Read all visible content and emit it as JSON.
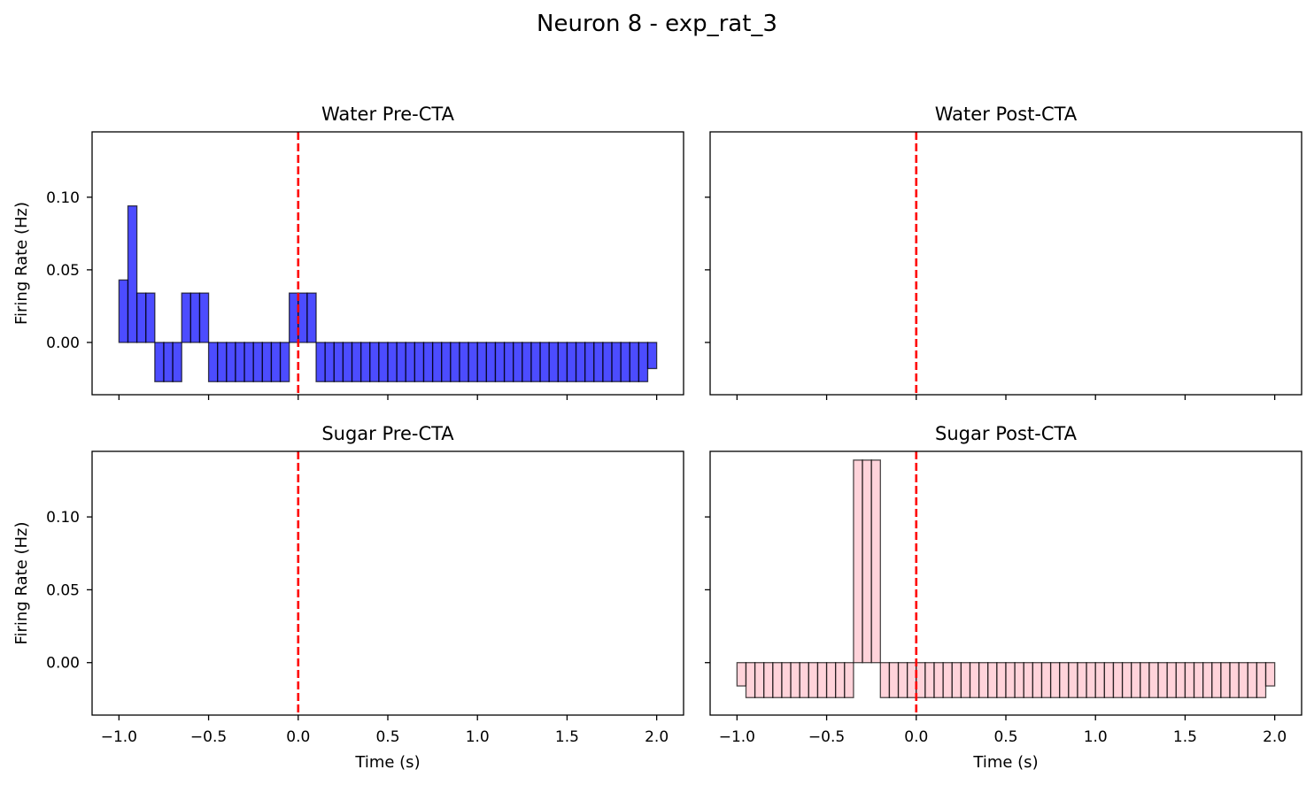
{
  "figure": {
    "title": "Neuron 8 - exp_rat_3"
  },
  "colors": {
    "water": "#0000ff",
    "sugar": "#ffc0cb",
    "edge": "#000000",
    "stimulus_line": "#ff0000"
  },
  "chart_data": [
    {
      "type": "bar",
      "title": "Water Pre-CTA",
      "xlabel": "",
      "ylabel": "Firing Rate (Hz)",
      "xlim": [
        -1.15,
        2.15
      ],
      "ylim": [
        -0.036,
        0.145
      ],
      "xticks": [
        -1.0,
        -0.5,
        0.0,
        0.5,
        1.0,
        1.5,
        2.0
      ],
      "xtick_labels": [],
      "yticks": [
        0.0,
        0.05,
        0.1
      ],
      "ytick_labels": [
        "0.00",
        "0.05",
        "0.10"
      ],
      "bin_start": -1.0,
      "bin_width": 0.05,
      "values": [
        0.043,
        0.094,
        0.034,
        0.034,
        -0.027,
        -0.027,
        -0.027,
        0.034,
        0.034,
        0.034,
        -0.027,
        -0.027,
        -0.027,
        -0.027,
        -0.027,
        -0.027,
        -0.027,
        -0.027,
        -0.027,
        0.034,
        0.034,
        0.034,
        -0.027,
        -0.027,
        -0.027,
        -0.027,
        -0.027,
        -0.027,
        -0.027,
        -0.027,
        -0.027,
        -0.027,
        -0.027,
        -0.027,
        -0.027,
        -0.027,
        -0.027,
        -0.027,
        -0.027,
        -0.027,
        -0.027,
        -0.027,
        -0.027,
        -0.027,
        -0.027,
        -0.027,
        -0.027,
        -0.027,
        -0.027,
        -0.027,
        -0.027,
        -0.027,
        -0.027,
        -0.027,
        -0.027,
        -0.027,
        -0.027,
        -0.027,
        -0.027,
        -0.018
      ],
      "fill": "water",
      "alpha": 0.7,
      "stimulus_x": 0.0
    },
    {
      "type": "bar",
      "title": "Water Post-CTA",
      "xlabel": "",
      "ylabel": "",
      "xlim": [
        -1.15,
        2.15
      ],
      "ylim": [
        -0.036,
        0.145
      ],
      "xticks": [
        -1.0,
        -0.5,
        0.0,
        0.5,
        1.0,
        1.5,
        2.0
      ],
      "xtick_labels": [],
      "yticks": [
        0.0,
        0.05,
        0.1
      ],
      "ytick_labels": [],
      "bin_start": -1.0,
      "bin_width": 0.05,
      "values": [
        0,
        0,
        0,
        0,
        0,
        0,
        0,
        0,
        0,
        0,
        0,
        0,
        0,
        0,
        0,
        0,
        0,
        0,
        0,
        0,
        0,
        0,
        0,
        0,
        0,
        0,
        0,
        0,
        0,
        0,
        0,
        0,
        0,
        0,
        0,
        0,
        0,
        0,
        0,
        0,
        0,
        0,
        0,
        0,
        0,
        0,
        0,
        0,
        0,
        0,
        0,
        0,
        0,
        0,
        0,
        0,
        0,
        0,
        0,
        0
      ],
      "fill": "water",
      "alpha": 0.7,
      "stimulus_x": 0.0
    },
    {
      "type": "bar",
      "title": "Sugar Pre-CTA",
      "xlabel": "Time (s)",
      "ylabel": "Firing Rate (Hz)",
      "xlim": [
        -1.15,
        2.15
      ],
      "ylim": [
        -0.036,
        0.145
      ],
      "xticks": [
        -1.0,
        -0.5,
        0.0,
        0.5,
        1.0,
        1.5,
        2.0
      ],
      "xtick_labels": [
        "−1.0",
        "−0.5",
        "0.0",
        "0.5",
        "1.0",
        "1.5",
        "2.0"
      ],
      "yticks": [
        0.0,
        0.05,
        0.1
      ],
      "ytick_labels": [
        "0.00",
        "0.05",
        "0.10"
      ],
      "bin_start": -1.0,
      "bin_width": 0.05,
      "values": [
        0,
        0,
        0,
        0,
        0,
        0,
        0,
        0,
        0,
        0,
        0,
        0,
        0,
        0,
        0,
        0,
        0,
        0,
        0,
        0,
        0,
        0,
        0,
        0,
        0,
        0,
        0,
        0,
        0,
        0,
        0,
        0,
        0,
        0,
        0,
        0,
        0,
        0,
        0,
        0,
        0,
        0,
        0,
        0,
        0,
        0,
        0,
        0,
        0,
        0,
        0,
        0,
        0,
        0,
        0,
        0,
        0,
        0,
        0,
        0
      ],
      "fill": "sugar",
      "alpha": 0.7,
      "stimulus_x": 0.0
    },
    {
      "type": "bar",
      "title": "Sugar Post-CTA",
      "xlabel": "Time (s)",
      "ylabel": "",
      "xlim": [
        -1.15,
        2.15
      ],
      "ylim": [
        -0.036,
        0.145
      ],
      "xticks": [
        -1.0,
        -0.5,
        0.0,
        0.5,
        1.0,
        1.5,
        2.0
      ],
      "xtick_labels": [
        "−1.0",
        "−0.5",
        "0.0",
        "0.5",
        "1.0",
        "1.5",
        "2.0"
      ],
      "yticks": [
        0.0,
        0.05,
        0.1
      ],
      "ytick_labels": [],
      "bin_start": -1.0,
      "bin_width": 0.05,
      "values": [
        -0.016,
        -0.024,
        -0.024,
        -0.024,
        -0.024,
        -0.024,
        -0.024,
        -0.024,
        -0.024,
        -0.024,
        -0.024,
        -0.024,
        -0.024,
        0.139,
        0.139,
        0.139,
        -0.024,
        -0.024,
        -0.024,
        -0.024,
        -0.024,
        -0.024,
        -0.024,
        -0.024,
        -0.024,
        -0.024,
        -0.024,
        -0.024,
        -0.024,
        -0.024,
        -0.024,
        -0.024,
        -0.024,
        -0.024,
        -0.024,
        -0.024,
        -0.024,
        -0.024,
        -0.024,
        -0.024,
        -0.024,
        -0.024,
        -0.024,
        -0.024,
        -0.024,
        -0.024,
        -0.024,
        -0.024,
        -0.024,
        -0.024,
        -0.024,
        -0.024,
        -0.024,
        -0.024,
        -0.024,
        -0.024,
        -0.024,
        -0.024,
        -0.024,
        -0.016
      ],
      "fill": "sugar",
      "alpha": 0.7,
      "stimulus_x": 0.0
    }
  ]
}
